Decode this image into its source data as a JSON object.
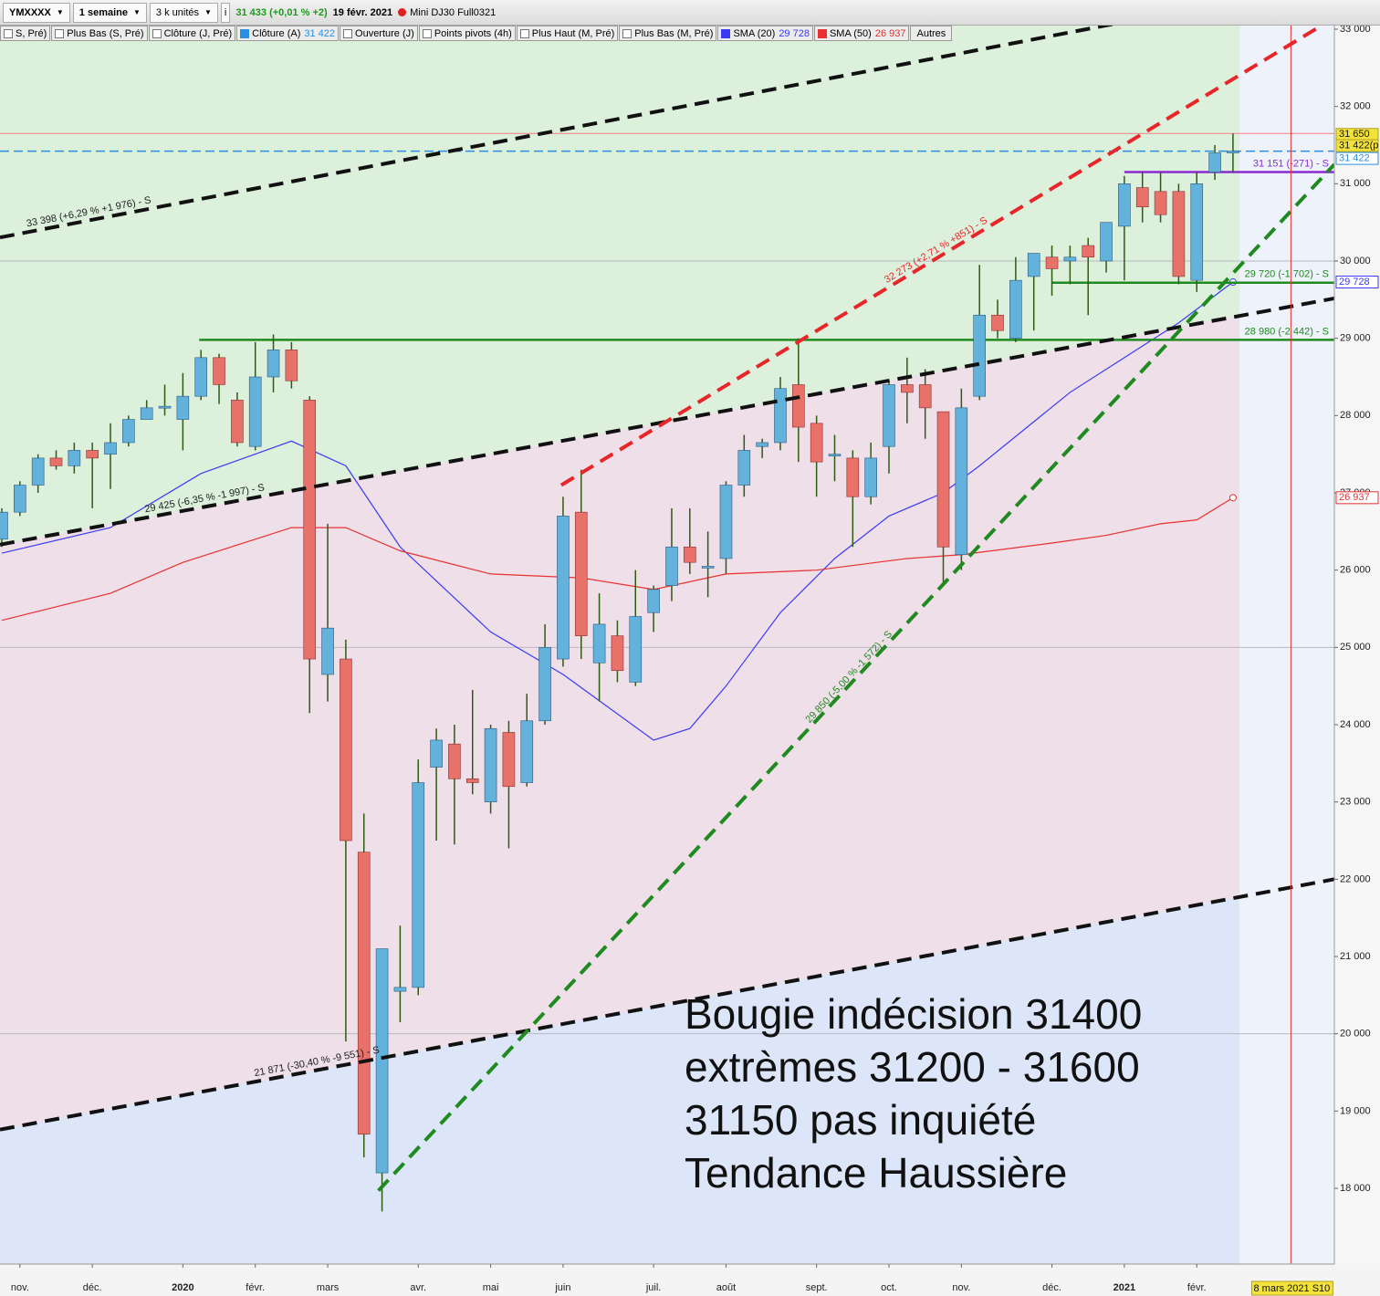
{
  "toolbar": {
    "symbol": "YMXXXX",
    "period": "1 semaine",
    "units": "3 k unités",
    "quote": "31 433 (+0,01 % +2)",
    "date": "19 févr. 2021",
    "contract": "Mini DJ30 Full0321"
  },
  "indicators": [
    {
      "label": "S, Pré)"
    },
    {
      "label": "Plus Bas (S, Pré)"
    },
    {
      "label": "Clôture (J, Pré)"
    },
    {
      "label": "Clôture (A)",
      "value": "31 422",
      "color": "#2a8fe0"
    },
    {
      "label": "Ouverture (J)"
    },
    {
      "label": "Points pivots (4h)"
    },
    {
      "label": "Plus Haut (M, Pré)"
    },
    {
      "label": "Plus Bas (M, Pré)"
    },
    {
      "label": "SMA (20)",
      "value": "29 728",
      "color": "#3a3af5"
    },
    {
      "label": "SMA (50)",
      "value": "26 937",
      "color": "#e83030"
    }
  ],
  "more_button": "Autres",
  "chart_data": {
    "type": "candlestick",
    "categories": [
      null,
      "nov.",
      null,
      null,
      null,
      "déc.",
      null,
      null,
      null,
      null,
      "2020",
      null,
      null,
      null,
      "févr.",
      null,
      null,
      null,
      "mars",
      null,
      null,
      null,
      null,
      "avr.",
      null,
      null,
      null,
      "mai",
      null,
      null,
      null,
      "juin",
      null,
      null,
      null,
      null,
      "juil.",
      null,
      null,
      null,
      "août",
      null,
      null,
      null,
      null,
      "sept.",
      null,
      null,
      null,
      "oct.",
      null,
      null,
      null,
      "nov.",
      null,
      null,
      null,
      null,
      "déc.",
      null,
      null,
      null,
      "2021",
      null,
      null,
      null,
      "févr.",
      null,
      null
    ],
    "open": [
      26400,
      26750,
      27100,
      27450,
      27350,
      27550,
      27500,
      27650,
      27950,
      28100,
      27950,
      28250,
      28750,
      28200,
      27600,
      28500,
      28850,
      28200,
      24650,
      24850,
      22350,
      18200,
      20550,
      20600,
      23450,
      23750,
      23300,
      23000,
      23900,
      23250,
      24050,
      24850,
      26750,
      24800,
      25150,
      24550,
      25450,
      25800,
      26300,
      26050,
      26150,
      27100,
      27600,
      27650,
      28400,
      27900,
      27500,
      27450,
      26950,
      27600,
      28400,
      28400,
      28050,
      26200,
      28250,
      29300,
      29000,
      29800,
      30050,
      30000,
      30200,
      30000,
      30450,
      30950,
      30900,
      30900,
      29750,
      31150,
      31420
    ],
    "high": [
      26800,
      27150,
      27500,
      27550,
      27650,
      27650,
      27900,
      28000,
      28200,
      28400,
      28550,
      28850,
      28800,
      28300,
      28950,
      29050,
      28950,
      28250,
      26600,
      25100,
      22850,
      21100,
      21400,
      23550,
      23950,
      24000,
      24450,
      24000,
      24050,
      24400,
      25300,
      26950,
      27300,
      25700,
      25350,
      26000,
      25800,
      26800,
      26800,
      26500,
      27150,
      27750,
      27700,
      28500,
      29000,
      28000,
      27750,
      27550,
      27650,
      28450,
      28750,
      28600,
      28050,
      28350,
      29950,
      29500,
      30050,
      30100,
      30200,
      30200,
      30300,
      30500,
      31100,
      31150,
      31150,
      31000,
      31150,
      31500,
      31650
    ],
    "low": [
      26300,
      26700,
      27000,
      27300,
      27250,
      26800,
      27050,
      27600,
      27950,
      28000,
      27550,
      28200,
      28150,
      27600,
      27550,
      28300,
      28350,
      24150,
      24300,
      19900,
      18400,
      17700,
      20150,
      20500,
      22500,
      22450,
      23100,
      22850,
      22400,
      23200,
      24000,
      24750,
      24850,
      24300,
      24550,
      24500,
      25200,
      25600,
      25950,
      25650,
      25950,
      26950,
      27450,
      27550,
      27400,
      26950,
      27150,
      26300,
      26850,
      27250,
      27900,
      27700,
      25800,
      26000,
      28200,
      29000,
      28950,
      29100,
      29550,
      29700,
      29300,
      29850,
      29750,
      30500,
      30500,
      29700,
      29600,
      31050,
      31150
    ],
    "close": [
      26750,
      27100,
      27450,
      27350,
      27550,
      27450,
      27650,
      27950,
      28100,
      28120,
      28250,
      28750,
      28400,
      27650,
      28500,
      28850,
      28450,
      24850,
      25250,
      22500,
      18700,
      21100,
      20600,
      23250,
      23800,
      23300,
      23250,
      23950,
      23200,
      24050,
      25000,
      26700,
      25150,
      25300,
      24700,
      25400,
      25750,
      26300,
      26100,
      26050,
      27100,
      27550,
      27650,
      28350,
      27850,
      27400,
      27500,
      26950,
      27450,
      28400,
      28300,
      28100,
      26300,
      28100,
      29300,
      29100,
      29750,
      30100,
      29900,
      30050,
      30050,
      30500,
      31000,
      30700,
      30600,
      29800,
      31000,
      31400,
      31422
    ],
    "up_color": "#62b2dc",
    "down_color": "#e8716a",
    "wick_color": "#2f5a12",
    "xlim": [
      -0.1,
      73.6
    ],
    "ylim": [
      17020,
      33047
    ],
    "yticks": [
      {
        "value": 18000,
        "label": "18 000"
      },
      {
        "value": 19000,
        "label": "19 000"
      },
      {
        "value": 20000,
        "label": "20 000"
      },
      {
        "value": 21000,
        "label": "21 000"
      },
      {
        "value": 22000,
        "label": "22 000"
      },
      {
        "value": 23000,
        "label": "23 000"
      },
      {
        "value": 24000,
        "label": "24 000"
      },
      {
        "value": 25000,
        "label": "25 000"
      },
      {
        "value": 26000,
        "label": "26 000"
      },
      {
        "value": 27000,
        "label": "27 000"
      },
      {
        "value": 28000,
        "label": "28 000"
      },
      {
        "value": 29000,
        "label": "29 000"
      },
      {
        "value": 30000,
        "label": "30 000"
      },
      {
        "value": 31000,
        "label": "31 000"
      },
      {
        "value": 32000,
        "label": "32 000"
      },
      {
        "value": 33000,
        "label": "33 000"
      }
    ],
    "ygrid": [
      20000,
      25000,
      30000
    ],
    "sma": [
      {
        "color": "#3a3af5",
        "x": [
          0,
          6,
          11,
          16,
          19,
          22,
          27,
          31,
          36,
          38,
          40,
          43,
          46,
          49,
          52,
          54,
          59,
          62,
          65,
          68
        ],
        "values": [
          26220,
          26550,
          27250,
          27670,
          27350,
          26300,
          25200,
          24650,
          23800,
          23950,
          24500,
          25450,
          26150,
          26700,
          27000,
          27350,
          28300,
          28750,
          29200,
          29728
        ]
      },
      {
        "color": "#e83030",
        "x": [
          0,
          6,
          10,
          14,
          16,
          19,
          22,
          27,
          32,
          36,
          40,
          45,
          50,
          53,
          58,
          61,
          64,
          66,
          68
        ],
        "values": [
          25350,
          25700,
          26100,
          26400,
          26550,
          26550,
          26250,
          25950,
          25900,
          25750,
          25950,
          26000,
          26150,
          26200,
          26350,
          26450,
          26600,
          26650,
          26937
        ]
      }
    ],
    "trendlines": [
      {
        "x": [
          -0.1,
          73.6
        ],
        "values": [
          30305,
          33615
        ],
        "color": "#111111",
        "label": "33 398 (+6,29 % +1 976) - S"
      },
      {
        "x": [
          -0.1,
          73.6
        ],
        "values": [
          26330,
          29516
        ],
        "color": "#111111",
        "label": "29 425 (-6,35 % -1 997) - S"
      },
      {
        "x": [
          -0.1,
          73.6
        ],
        "values": [
          18760,
          22000
        ],
        "color": "#111111",
        "label": "21 871 (-30,40 % -9 551) - S"
      },
      {
        "x": [
          30.9,
          72.7
        ],
        "values": [
          27100,
          33020
        ],
        "color": "#e8262a",
        "label": "32 273 (+2,71 % +851) - S"
      },
      {
        "x": [
          20.8,
          73.6
        ],
        "values": [
          17970,
          31250
        ],
        "color": "#1f8a1f",
        "label": "29 850 (-5,00 % -1 572) - S"
      }
    ],
    "levels": [
      {
        "value": 28980,
        "from": 10.9,
        "color": "#1f8a1f",
        "label": "28 980 (-2 442) - S"
      },
      {
        "value": 29720,
        "from": 58,
        "color": "#1f8a1f",
        "label": "29 720 (-1 702) - S"
      },
      {
        "value": 31151,
        "from": 62,
        "color": "#8a2bd2",
        "label": "31 151 (-271) - S"
      },
      {
        "value": 31422,
        "from": -0.1,
        "color": "#2a8fe0",
        "dash": true
      },
      {
        "value": 31650,
        "from": -0.1,
        "color": "#f08080"
      }
    ],
    "price_labels": [
      {
        "value": 31650,
        "label": "31 650",
        "color": "#f3e23c"
      },
      {
        "value": 31422,
        "label": "31 422(p",
        "color": "#f3e23c"
      },
      {
        "value": 31422,
        "label": "31 422",
        "color": "#2a8fe0"
      },
      {
        "value": 29728,
        "label": "29 728",
        "color": "#3a3af5"
      },
      {
        "value": 26937,
        "label": "26 937",
        "color": "#e83030"
      }
    ],
    "cursor": {
      "x": 71.2,
      "label": "8 mars 2021 S10",
      "color": "#e83030"
    },
    "annotation": [
      "Bougie indécision 31400",
      "extrèmes 31200 - 31600",
      "31150 pas inquiété",
      "Tendance Haussière"
    ]
  }
}
